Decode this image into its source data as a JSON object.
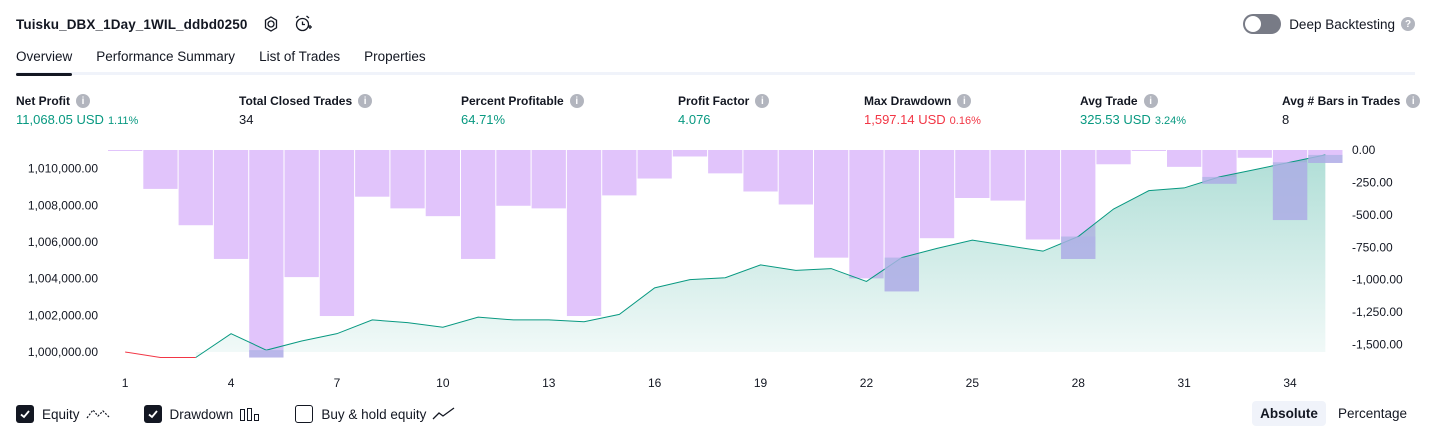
{
  "header": {
    "title": "Tuisku_DBX_1Day_1WIL_ddbd0250",
    "icons": [
      "settings-icon",
      "alarm-add-icon"
    ]
  },
  "deep_backtesting": {
    "label": "Deep Backtesting",
    "enabled": false
  },
  "tabs": [
    {
      "label": "Overview",
      "active": true
    },
    {
      "label": "Performance Summary",
      "active": false
    },
    {
      "label": "List of Trades",
      "active": false
    },
    {
      "label": "Properties",
      "active": false
    }
  ],
  "metrics": {
    "net_profit": {
      "label": "Net Profit",
      "value": "11,068.05 USD",
      "pct": "1.11%"
    },
    "total_closed_trades": {
      "label": "Total Closed Trades",
      "value": "34"
    },
    "percent_profitable": {
      "label": "Percent Profitable",
      "value": "64.71%"
    },
    "profit_factor": {
      "label": "Profit Factor",
      "value": "4.076"
    },
    "max_drawdown": {
      "label": "Max Drawdown",
      "value": "1,597.14 USD",
      "pct": "0.16%"
    },
    "avg_trade": {
      "label": "Avg Trade",
      "value": "325.53 USD",
      "pct": "3.24%"
    },
    "avg_bars": {
      "label": "Avg # Bars in Trades",
      "value": "8"
    }
  },
  "chart_data": {
    "type": "area",
    "x": [
      1,
      2,
      3,
      4,
      5,
      6,
      7,
      8,
      9,
      10,
      11,
      12,
      13,
      14,
      15,
      16,
      17,
      18,
      19,
      20,
      21,
      22,
      23,
      24,
      25,
      26,
      27,
      28,
      29,
      30,
      31,
      32,
      33,
      34,
      35
    ],
    "x_ticks": [
      "1",
      "4",
      "7",
      "10",
      "13",
      "16",
      "19",
      "22",
      "25",
      "28",
      "31",
      "34"
    ],
    "left_ticks": [
      "1,010,000.00",
      "1,008,000.00",
      "1,006,000.00",
      "1,004,000.00",
      "1,002,000.00",
      "1,000,000.00"
    ],
    "right_ticks": [
      "0.00",
      "-250.00",
      "-500.00",
      "-750.00",
      "-1,000.00",
      "-1,250.00",
      "-1,500.00"
    ],
    "left_ylim": [
      999000,
      1011000
    ],
    "right_ylim": [
      -1597.14,
      0
    ],
    "series": [
      {
        "name": "Equity",
        "color": "#089981",
        "values": [
          1000000,
          999700,
          999700,
          1001000,
          1000100,
          1000600,
          1001000,
          1001750,
          1001600,
          1001350,
          1001900,
          1001750,
          1001750,
          1001650,
          1002050,
          1003500,
          1003950,
          1004050,
          1004750,
          1004450,
          1004550,
          1003850,
          1005150,
          1005650,
          1006100,
          1005800,
          1005500,
          1006300,
          1007800,
          1008800,
          1008950,
          1009550,
          1009950,
          1010350,
          1010750
        ]
      },
      {
        "name": "Drawdown",
        "color": "#ce93d8",
        "values": [
          0,
          -300,
          -580,
          -840,
          -1600,
          -980,
          -1280,
          -360,
          -450,
          -510,
          -840,
          -430,
          -450,
          -1280,
          -350,
          -220,
          -50,
          -180,
          -320,
          -420,
          -830,
          -990,
          -1090,
          -680,
          -370,
          -390,
          -690,
          -840,
          -110,
          0,
          -130,
          -260,
          -60,
          -540,
          -100
        ]
      }
    ]
  },
  "legend": [
    {
      "label": "Equity",
      "checked": true,
      "icon": "equity-line-icon"
    },
    {
      "label": "Drawdown",
      "checked": true,
      "icon": "drawdown-bars-icon"
    },
    {
      "label": "Buy & hold equity",
      "checked": false,
      "icon": "buy-hold-line-icon"
    }
  ],
  "modes": [
    {
      "label": "Absolute",
      "active": true
    },
    {
      "label": "Percentage",
      "active": false
    }
  ]
}
